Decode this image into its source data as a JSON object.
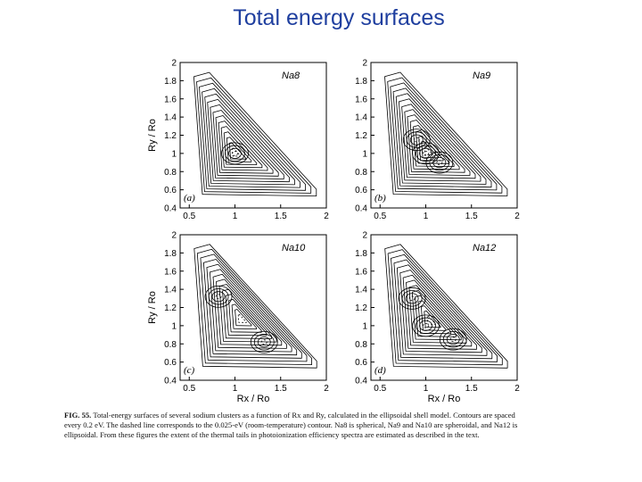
{
  "slide": {
    "title": "Total energy surfaces"
  },
  "chart_data": [
    {
      "type": "contour",
      "panel": "(a)",
      "cluster": "Na8",
      "xlabel": "",
      "ylabel": "Ry / Ro",
      "xlim": [
        0.4,
        2.0
      ],
      "ylim": [
        0.4,
        2.0
      ],
      "xticks": [
        "0.5",
        "1",
        "1.5",
        "2"
      ],
      "yticks": [
        "0.4",
        "0.6",
        "0.8",
        "1",
        "1.2",
        "1.4",
        "1.6",
        "1.8",
        "2"
      ],
      "minima": [
        {
          "x": 1.0,
          "y": 1.0
        }
      ]
    },
    {
      "type": "contour",
      "panel": "(b)",
      "cluster": "Na9",
      "xlabel": "",
      "ylabel": "",
      "xlim": [
        0.4,
        2.0
      ],
      "ylim": [
        0.4,
        2.0
      ],
      "xticks": [
        "0.5",
        "1",
        "1.5",
        "2"
      ],
      "yticks": [
        "0.4",
        "0.6",
        "0.8",
        "1",
        "1.2",
        "1.4",
        "1.6",
        "1.8",
        "2"
      ],
      "minima": [
        {
          "x": 0.9,
          "y": 1.15
        },
        {
          "x": 1.15,
          "y": 0.9
        },
        {
          "x": 1.0,
          "y": 1.0
        }
      ]
    },
    {
      "type": "contour",
      "panel": "(c)",
      "cluster": "Na10",
      "xlabel": "Rx / Ro",
      "ylabel": "Ry / Ro",
      "xlim": [
        0.4,
        2.0
      ],
      "ylim": [
        0.4,
        2.0
      ],
      "xticks": [
        "0.5",
        "1",
        "1.5",
        "2"
      ],
      "yticks": [
        "0.4",
        "0.6",
        "0.8",
        "1",
        "1.2",
        "1.4",
        "1.6",
        "1.8",
        "2"
      ],
      "minima": [
        {
          "x": 0.82,
          "y": 1.32
        },
        {
          "x": 1.32,
          "y": 0.82
        }
      ]
    },
    {
      "type": "contour",
      "panel": "(d)",
      "cluster": "Na12",
      "xlabel": "Rx / Ro",
      "ylabel": "",
      "xlim": [
        0.4,
        2.0
      ],
      "ylim": [
        0.4,
        2.0
      ],
      "xticks": [
        "0.5",
        "1",
        "1.5",
        "2"
      ],
      "yticks": [
        "0.4",
        "0.6",
        "0.8",
        "1",
        "1.2",
        "1.4",
        "1.6",
        "1.8",
        "2"
      ],
      "minima": [
        {
          "x": 0.85,
          "y": 1.3
        },
        {
          "x": 1.3,
          "y": 0.85
        },
        {
          "x": 1.0,
          "y": 1.0
        }
      ]
    }
  ],
  "caption": {
    "label": "FIG. 55.",
    "text": "Total-energy surfaces of several sodium clusters as a function of Rx and Ry, calculated in the ellipsoidal shell model. Contours are spaced every 0.2 eV. The dashed line corresponds to the 0.025-eV (room-temperature) contour. Na8 is spherical, Na9 and Na10 are spheroidal, and Na12 is ellipsoidal. From these figures the extent of the thermal tails in photoionization efficiency spectra are estimated as described in the text."
  }
}
